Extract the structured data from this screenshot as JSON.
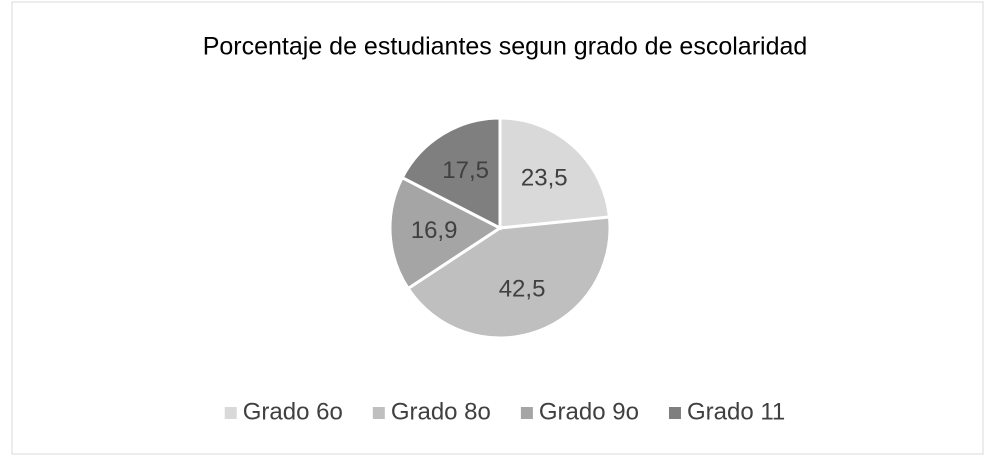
{
  "chart_data": {
    "type": "pie",
    "title": "Porcentaje de estudiantes segun grado de escolaridad",
    "categories": [
      "Grado 6o",
      "Grado 8o",
      "Grado 9o",
      "Grado 11"
    ],
    "values": [
      23.5,
      42.5,
      16.9,
      17.5
    ],
    "value_labels": [
      "23,5",
      "42,5",
      "16,9",
      "17,5"
    ],
    "colors": [
      "#d9d9d9",
      "#bfbfbf",
      "#a5a5a5",
      "#7f7f7f"
    ],
    "legend": "bottom"
  }
}
